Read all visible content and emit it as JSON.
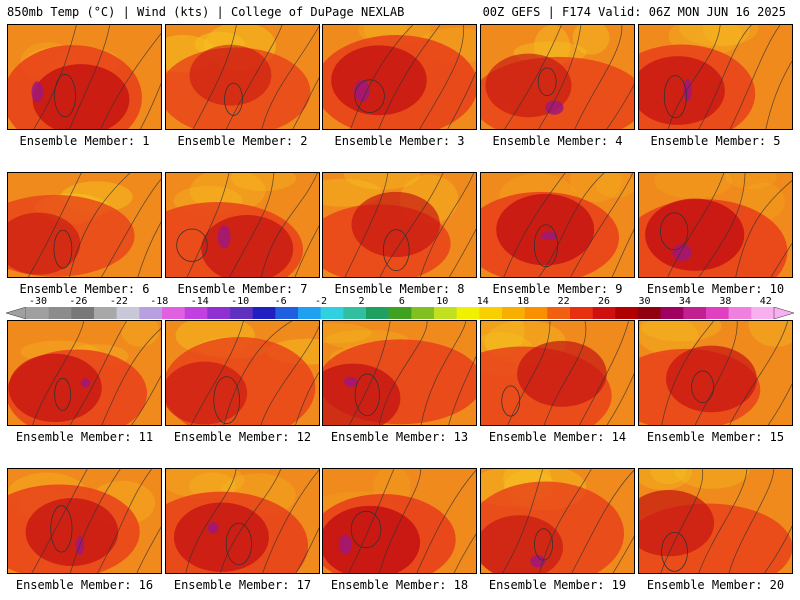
{
  "header": {
    "left": "850mb Temp (°C) | Wind (kts) | College of DuPage NEXLAB",
    "right": "00Z GEFS | F174 Valid: 06Z MON JUN 16 2025"
  },
  "members": [
    {
      "label": "Ensemble Member: 1",
      "tone": 0.8
    },
    {
      "label": "Ensemble Member: 2",
      "tone": 0.55
    },
    {
      "label": "Ensemble Member: 3",
      "tone": 0.78
    },
    {
      "label": "Ensemble Member: 4",
      "tone": 0.62
    },
    {
      "label": "Ensemble Member: 5",
      "tone": 0.75
    },
    {
      "label": "Ensemble Member: 6",
      "tone": 0.58
    },
    {
      "label": "Ensemble Member: 7",
      "tone": 0.72
    },
    {
      "label": "Ensemble Member: 8",
      "tone": 0.66
    },
    {
      "label": "Ensemble Member: 9",
      "tone": 0.82
    },
    {
      "label": "Ensemble Member: 10",
      "tone": 0.84
    },
    {
      "label": "Ensemble Member: 11",
      "tone": 0.74
    },
    {
      "label": "Ensemble Member: 12",
      "tone": 0.6
    },
    {
      "label": "Ensemble Member: 13",
      "tone": 0.76
    },
    {
      "label": "Ensemble Member: 14",
      "tone": 0.68
    },
    {
      "label": "Ensemble Member: 15",
      "tone": 0.7
    },
    {
      "label": "Ensemble Member: 16",
      "tone": 0.73
    },
    {
      "label": "Ensemble Member: 17",
      "tone": 0.77
    },
    {
      "label": "Ensemble Member: 18",
      "tone": 0.86
    },
    {
      "label": "Ensemble Member: 19",
      "tone": 0.64
    },
    {
      "label": "Ensemble Member: 20",
      "tone": 0.69
    }
  ],
  "colorbar": {
    "ticks": [
      "-30",
      "-26",
      "-22",
      "-18",
      "-14",
      "-10",
      "-6",
      "-2",
      "2",
      "6",
      "10",
      "14",
      "18",
      "22",
      "26",
      "30",
      "34",
      "38",
      "42"
    ],
    "colors": [
      "#a0a0a0",
      "#8c8c8c",
      "#787878",
      "#a8a8a8",
      "#c8c8d8",
      "#b8a0e0",
      "#e060e0",
      "#c040e0",
      "#9030d0",
      "#6030c0",
      "#2020c0",
      "#2060e0",
      "#20a0f0",
      "#30d0e0",
      "#30c0a0",
      "#20a060",
      "#40a020",
      "#80c020",
      "#c0e020",
      "#f0f000",
      "#f8d000",
      "#f8b000",
      "#f89000",
      "#f06010",
      "#e83010",
      "#d01010",
      "#b00000",
      "#900010",
      "#a00060",
      "#c02090",
      "#e040c0",
      "#f080e0",
      "#f8b0f0"
    ]
  },
  "palette": {
    "hot": "#c41212",
    "warm": "#e8401a",
    "mid": "#f08a1c",
    "cool": "#f5c020",
    "magenta": "#a0187a",
    "contour": "#333333"
  }
}
